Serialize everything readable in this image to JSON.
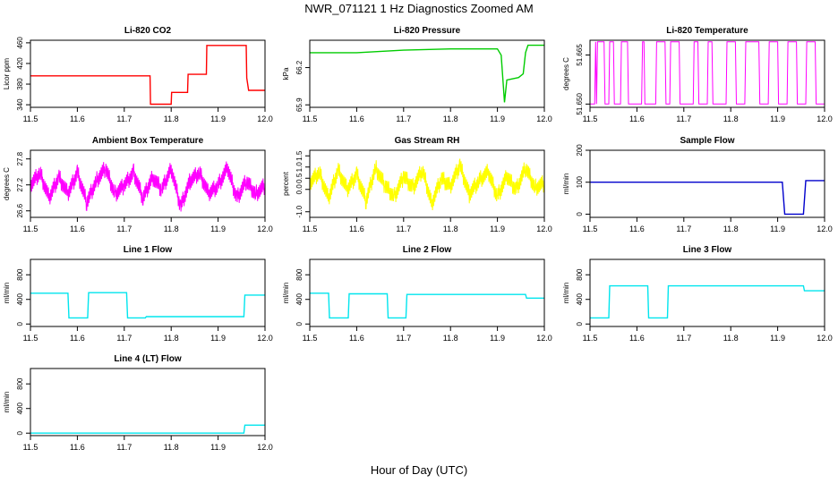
{
  "page": {
    "title": "NWR_071121  1 Hz Diagnostics Zoomed AM",
    "xlabel": "Hour of Day (UTC)"
  },
  "chart_data": [
    {
      "type": "line",
      "title": "Li-820 CO2",
      "ylabel": "Licor ppm",
      "color": "#ff0000",
      "xlim": [
        11.5,
        12.0
      ],
      "ylim": [
        335,
        465
      ],
      "x_ticks": [
        "11.5",
        "11.6",
        "11.7",
        "11.8",
        "11.9",
        "12.0"
      ],
      "y_ticks": [
        "340",
        "380",
        "420",
        "460"
      ],
      "grid": false,
      "series": [
        {
          "x": [
            11.5,
            11.755,
            11.756,
            11.8,
            11.801,
            11.835,
            11.836,
            11.875,
            11.876,
            11.96,
            11.961,
            11.965,
            12.0
          ],
          "y": [
            396,
            396,
            341,
            341,
            364,
            364,
            399,
            399,
            455,
            455,
            392,
            368,
            368
          ]
        }
      ]
    },
    {
      "type": "line",
      "title": "Li-820 Pressure",
      "ylabel": "kPa",
      "color": "#00cc00",
      "xlim": [
        11.5,
        12.0
      ],
      "ylim": [
        65.88,
        66.42
      ],
      "x_ticks": [
        "11.5",
        "11.6",
        "11.7",
        "11.8",
        "11.9",
        "12.0"
      ],
      "y_ticks": [
        "65.9",
        "66.2"
      ],
      "grid": false,
      "series": [
        {
          "x": [
            11.5,
            11.6,
            11.7,
            11.8,
            11.9,
            11.908,
            11.915,
            11.92,
            11.945,
            11.955,
            11.96,
            11.965,
            12.0
          ],
          "y": [
            66.32,
            66.32,
            66.34,
            66.35,
            66.35,
            66.3,
            65.92,
            66.1,
            66.12,
            66.15,
            66.32,
            66.38,
            66.38
          ]
        }
      ]
    },
    {
      "type": "line",
      "title": "Li-820 Temperature",
      "ylabel": "degrees C",
      "color": "#ff00ff",
      "xlim": [
        11.5,
        12.0
      ],
      "ylim": [
        51.649,
        51.6695
      ],
      "x_ticks": [
        "11.5",
        "11.6",
        "11.7",
        "11.8",
        "11.9",
        "12.0"
      ],
      "y_ticks": [
        "51.650",
        "51.665"
      ],
      "grid": false,
      "series": [
        {
          "x": [
            11.5,
            11.51,
            11.512,
            11.514,
            11.516,
            11.53,
            11.532,
            11.54,
            11.542,
            11.55,
            11.552,
            11.565,
            11.567,
            11.58,
            11.582,
            11.61,
            11.612,
            11.615,
            11.617,
            11.64,
            11.642,
            11.66,
            11.662,
            11.67,
            11.672,
            11.69,
            11.692,
            11.72,
            11.722,
            11.73,
            11.732,
            11.75,
            11.752,
            11.76,
            11.762,
            11.79,
            11.792,
            11.81,
            11.812,
            11.83,
            11.832,
            11.86,
            11.862,
            11.88,
            11.882,
            11.9,
            11.902,
            11.92,
            11.922,
            11.94,
            11.942,
            11.96,
            11.962,
            11.98,
            11.982,
            12.0
          ],
          "y": [
            51.65,
            51.65,
            51.669,
            51.65,
            51.669,
            51.669,
            51.65,
            51.65,
            51.669,
            51.669,
            51.65,
            51.65,
            51.669,
            51.669,
            51.65,
            51.65,
            51.669,
            51.669,
            51.65,
            51.65,
            51.669,
            51.669,
            51.65,
            51.65,
            51.669,
            51.669,
            51.65,
            51.65,
            51.669,
            51.669,
            51.65,
            51.65,
            51.669,
            51.669,
            51.65,
            51.65,
            51.669,
            51.669,
            51.65,
            51.65,
            51.669,
            51.669,
            51.65,
            51.65,
            51.669,
            51.669,
            51.65,
            51.65,
            51.669,
            51.669,
            51.65,
            51.65,
            51.669,
            51.669,
            51.65,
            51.65
          ]
        }
      ]
    },
    {
      "type": "line",
      "title": "Ambient Box Temperature",
      "ylabel": "degrees C",
      "color": "#ff00ff",
      "xlim": [
        11.5,
        12.0
      ],
      "ylim": [
        26.45,
        28.0
      ],
      "x_ticks": [
        "11.5",
        "11.6",
        "11.7",
        "11.8",
        "11.9",
        "12.0"
      ],
      "y_ticks": [
        "26.6",
        "27.2",
        "27.8"
      ],
      "grid": false,
      "series": [
        {
          "x": [
            11.5,
            11.52,
            11.54,
            11.56,
            11.58,
            11.6,
            11.62,
            11.64,
            11.66,
            11.68,
            11.7,
            11.72,
            11.74,
            11.76,
            11.78,
            11.8,
            11.82,
            11.84,
            11.86,
            11.88,
            11.9,
            11.92,
            11.94,
            11.96,
            11.98,
            12.0
          ],
          "y": [
            27.2,
            27.5,
            26.9,
            27.4,
            27.0,
            27.5,
            26.8,
            27.3,
            27.6,
            27.0,
            27.2,
            27.5,
            26.9,
            27.4,
            27.1,
            27.6,
            26.7,
            27.3,
            27.5,
            27.0,
            27.2,
            27.6,
            26.9,
            27.3,
            27.0,
            27.2
          ]
        }
      ]
    },
    {
      "type": "line",
      "title": "Gas Stream RH",
      "ylabel": "percent",
      "color": "#ffff00",
      "xlim": [
        11.5,
        12.0
      ],
      "ylim": [
        -1.25,
        1.75
      ],
      "x_ticks": [
        "11.5",
        "11.6",
        "11.7",
        "11.8",
        "11.9",
        "12.0"
      ],
      "y_ticks": [
        "-1.0",
        "0.0",
        "0.5",
        "1.0",
        "1.5"
      ],
      "grid": false,
      "series": [
        {
          "x": [
            11.5,
            11.52,
            11.54,
            11.56,
            11.58,
            11.6,
            11.62,
            11.64,
            11.66,
            11.68,
            11.7,
            11.72,
            11.74,
            11.76,
            11.78,
            11.8,
            11.82,
            11.84,
            11.86,
            11.88,
            11.9,
            11.92,
            11.94,
            11.96,
            11.98,
            12.0
          ],
          "y": [
            0.3,
            0.8,
            -0.4,
            0.9,
            0.0,
            0.7,
            -0.5,
            1.0,
            0.2,
            -0.3,
            0.6,
            0.1,
            0.9,
            -0.6,
            0.5,
            0.2,
            1.1,
            -0.2,
            0.4,
            0.8,
            -0.3,
            0.6,
            0.0,
            1.0,
            0.1,
            0.3
          ]
        }
      ]
    },
    {
      "type": "line",
      "title": "Sample Flow",
      "ylabel": "ml/min",
      "color": "#0000cc",
      "xlim": [
        11.5,
        12.0
      ],
      "ylim": [
        -10,
        200
      ],
      "x_ticks": [
        "11.5",
        "11.6",
        "11.7",
        "11.8",
        "11.9",
        "12.0"
      ],
      "y_ticks": [
        "0",
        "100",
        "200"
      ],
      "grid": false,
      "series": [
        {
          "x": [
            11.5,
            11.6,
            11.7,
            11.8,
            11.91,
            11.915,
            11.955,
            11.96,
            12.0
          ],
          "y": [
            100,
            100,
            100,
            100,
            100,
            0,
            0,
            105,
            105
          ]
        }
      ]
    },
    {
      "type": "line",
      "title": "Line 1 Flow",
      "ylabel": "ml/min",
      "color": "#00e5ee",
      "xlim": [
        11.5,
        12.0
      ],
      "ylim": [
        -40,
        1050
      ],
      "x_ticks": [
        "11.5",
        "11.6",
        "11.7",
        "11.8",
        "11.9",
        "12.0"
      ],
      "y_ticks": [
        "0",
        "400",
        "800"
      ],
      "grid": false,
      "series": [
        {
          "x": [
            11.5,
            11.58,
            11.582,
            11.622,
            11.624,
            11.705,
            11.707,
            11.745,
            11.747,
            11.955,
            11.957,
            12.0
          ],
          "y": [
            500,
            500,
            100,
            100,
            510,
            510,
            100,
            100,
            120,
            120,
            470,
            470
          ]
        }
      ]
    },
    {
      "type": "line",
      "title": "Line 2 Flow",
      "ylabel": "ml/min",
      "color": "#00e5ee",
      "xlim": [
        11.5,
        12.0
      ],
      "ylim": [
        -40,
        1050
      ],
      "x_ticks": [
        "11.5",
        "11.6",
        "11.7",
        "11.8",
        "11.9",
        "12.0"
      ],
      "y_ticks": [
        "0",
        "400",
        "800"
      ],
      "grid": false,
      "series": [
        {
          "x": [
            11.5,
            11.54,
            11.542,
            11.582,
            11.584,
            11.665,
            11.667,
            11.705,
            11.707,
            11.96,
            11.962,
            12.0
          ],
          "y": [
            500,
            500,
            100,
            100,
            490,
            490,
            100,
            100,
            480,
            480,
            420,
            420
          ]
        }
      ]
    },
    {
      "type": "line",
      "title": "Line 3 Flow",
      "ylabel": "ml/min",
      "color": "#00e5ee",
      "xlim": [
        11.5,
        12.0
      ],
      "ylim": [
        -40,
        1050
      ],
      "x_ticks": [
        "11.5",
        "11.6",
        "11.7",
        "11.8",
        "11.9",
        "12.0"
      ],
      "y_ticks": [
        "0",
        "400",
        "800"
      ],
      "grid": false,
      "series": [
        {
          "x": [
            11.5,
            11.54,
            11.542,
            11.623,
            11.625,
            11.665,
            11.667,
            11.955,
            11.957,
            12.0
          ],
          "y": [
            100,
            100,
            620,
            620,
            100,
            100,
            620,
            620,
            540,
            540
          ]
        }
      ]
    },
    {
      "type": "line",
      "title": "Line 4 (LT) Flow",
      "ylabel": "ml/min",
      "color": "#00e5ee",
      "xlim": [
        11.5,
        12.0
      ],
      "ylim": [
        -40,
        1050
      ],
      "x_ticks": [
        "11.5",
        "11.6",
        "11.7",
        "11.8",
        "11.9",
        "12.0"
      ],
      "y_ticks": [
        "0",
        "400",
        "800"
      ],
      "grid": false,
      "series": [
        {
          "x": [
            11.5,
            11.955,
            11.957,
            12.0
          ],
          "y": [
            0,
            0,
            130,
            130
          ]
        }
      ]
    }
  ]
}
